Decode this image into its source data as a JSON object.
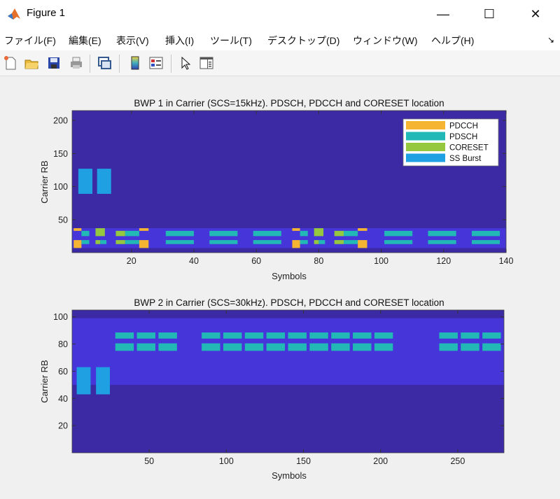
{
  "window": {
    "title": "Figure 1",
    "controls": [
      "minimize",
      "maximize",
      "close"
    ]
  },
  "menu": [
    "ファイル(F)",
    "編集(E)",
    "表示(V)",
    "挿入(I)",
    "ツール(T)",
    "デスクトップ(D)",
    "ウィンドウ(W)",
    "ヘルプ(H)"
  ],
  "toolbar": [
    "new-figure-icon",
    "open-file-icon",
    "save-icon",
    "print-icon",
    "link-plot-icon",
    "colorbar-icon",
    "legend-icon",
    "pointer-icon",
    "property-inspector-icon"
  ],
  "colors": {
    "background": "#3b2aa3",
    "bwp": "#4636d9",
    "PDCCH": "#f5b432",
    "PDSCH": "#22b8b6",
    "CORESET": "#95c83e",
    "SS Burst": "#1fa0e2"
  },
  "chart_data": [
    {
      "type": "heatmap",
      "title": "BWP 1 in Carrier (SCS=15kHz). PDSCH, PDCCH and CORESET location",
      "xlabel": "Symbols",
      "ylabel": "Carrier RB",
      "xlim": [
        1,
        140
      ],
      "ylim": [
        0,
        215
      ],
      "xticks": [
        20,
        40,
        60,
        80,
        100,
        120,
        140
      ],
      "yticks": [
        50,
        100,
        150,
        200
      ],
      "legend": {
        "placement": "top-right",
        "entries": [
          "PDCCH",
          "PDSCH",
          "CORESET",
          "SS Burst"
        ]
      },
      "regions": [
        {
          "type": "bwp",
          "x": [
            1,
            140
          ],
          "y": [
            7,
            37
          ]
        },
        {
          "type": "SS Burst",
          "x": [
            3,
            7.5
          ],
          "y": [
            89,
            127
          ]
        },
        {
          "type": "SS Burst",
          "x": [
            9,
            13.5
          ],
          "y": [
            89,
            127
          ]
        },
        {
          "type": "PDCCH",
          "x": [
            1.5,
            4
          ],
          "y": [
            7,
            19
          ]
        },
        {
          "type": "PDCCH",
          "x": [
            1.5,
            4
          ],
          "y": [
            33,
            37
          ]
        },
        {
          "type": "PDSCH",
          "x": [
            4,
            6.5
          ],
          "y": [
            13,
            19
          ]
        },
        {
          "type": "PDSCH",
          "x": [
            4,
            6.5
          ],
          "y": [
            25,
            33
          ]
        },
        {
          "type": "CORESET",
          "x": [
            8.5,
            11.5
          ],
          "y": [
            25,
            37
          ]
        },
        {
          "type": "CORESET",
          "x": [
            8.5,
            10
          ],
          "y": [
            13,
            19
          ]
        },
        {
          "type": "PDSCH",
          "x": [
            10,
            12
          ],
          "y": [
            13,
            19
          ]
        },
        {
          "type": "CORESET",
          "x": [
            15,
            18
          ],
          "y": [
            13,
            19
          ]
        },
        {
          "type": "CORESET",
          "x": [
            15,
            18
          ],
          "y": [
            25,
            33
          ]
        },
        {
          "type": "PDSCH",
          "x": [
            18,
            22.5
          ],
          "y": [
            13,
            19
          ]
        },
        {
          "type": "PDSCH",
          "x": [
            18,
            22.5
          ],
          "y": [
            25,
            33
          ]
        },
        {
          "type": "PDCCH",
          "x": [
            22.5,
            25.5
          ],
          "y": [
            7,
            19
          ]
        },
        {
          "type": "PDCCH",
          "x": [
            22.5,
            25.5
          ],
          "y": [
            33,
            37
          ]
        },
        {
          "type": "PDSCH",
          "x": [
            31,
            40
          ],
          "y": [
            25,
            33
          ]
        },
        {
          "type": "PDSCH",
          "x": [
            31,
            40
          ],
          "y": [
            13,
            19
          ]
        },
        {
          "type": "PDSCH",
          "x": [
            45,
            54
          ],
          "y": [
            25,
            33
          ]
        },
        {
          "type": "PDSCH",
          "x": [
            45,
            54
          ],
          "y": [
            13,
            19
          ]
        },
        {
          "type": "PDSCH",
          "x": [
            59,
            68
          ],
          "y": [
            25,
            33
          ]
        },
        {
          "type": "PDSCH",
          "x": [
            59,
            68
          ],
          "y": [
            13,
            19
          ]
        },
        {
          "type": "PDCCH",
          "x": [
            71.5,
            74
          ],
          "y": [
            7,
            19
          ]
        },
        {
          "type": "PDCCH",
          "x": [
            71.5,
            74
          ],
          "y": [
            33,
            37
          ]
        },
        {
          "type": "PDSCH",
          "x": [
            74,
            76.5
          ],
          "y": [
            13,
            19
          ]
        },
        {
          "type": "PDSCH",
          "x": [
            74,
            76.5
          ],
          "y": [
            25,
            33
          ]
        },
        {
          "type": "CORESET",
          "x": [
            78.5,
            81.5
          ],
          "y": [
            25,
            37
          ]
        },
        {
          "type": "CORESET",
          "x": [
            78.5,
            80
          ],
          "y": [
            13,
            19
          ]
        },
        {
          "type": "PDSCH",
          "x": [
            80,
            82
          ],
          "y": [
            13,
            19
          ]
        },
        {
          "type": "CORESET",
          "x": [
            85,
            88
          ],
          "y": [
            13,
            19
          ]
        },
        {
          "type": "CORESET",
          "x": [
            85,
            88
          ],
          "y": [
            25,
            33
          ]
        },
        {
          "type": "PDSCH",
          "x": [
            88,
            92.5
          ],
          "y": [
            13,
            19
          ]
        },
        {
          "type": "PDSCH",
          "x": [
            88,
            92.5
          ],
          "y": [
            25,
            33
          ]
        },
        {
          "type": "PDCCH",
          "x": [
            92.5,
            95.5
          ],
          "y": [
            7,
            19
          ]
        },
        {
          "type": "PDCCH",
          "x": [
            92.5,
            95.5
          ],
          "y": [
            33,
            37
          ]
        },
        {
          "type": "PDSCH",
          "x": [
            101,
            110
          ],
          "y": [
            25,
            33
          ]
        },
        {
          "type": "PDSCH",
          "x": [
            101,
            110
          ],
          "y": [
            13,
            19
          ]
        },
        {
          "type": "PDSCH",
          "x": [
            115,
            124
          ],
          "y": [
            25,
            33
          ]
        },
        {
          "type": "PDSCH",
          "x": [
            115,
            124
          ],
          "y": [
            13,
            19
          ]
        },
        {
          "type": "PDSCH",
          "x": [
            129,
            138
          ],
          "y": [
            25,
            33
          ]
        },
        {
          "type": "PDSCH",
          "x": [
            129,
            138
          ],
          "y": [
            13,
            19
          ]
        }
      ]
    },
    {
      "type": "heatmap",
      "title": "BWP 2 in Carrier (SCS=30kHz). PDSCH, PDCCH and CORESET location",
      "xlabel": "Symbols",
      "ylabel": "Carrier RB",
      "xlim": [
        0,
        280
      ],
      "ylim": [
        0,
        105
      ],
      "xticks": [
        50,
        100,
        150,
        200,
        250
      ],
      "yticks": [
        20,
        40,
        60,
        80,
        100
      ],
      "regions": [
        {
          "type": "bwp",
          "x": [
            0,
            280
          ],
          "y": [
            50,
            99
          ]
        },
        {
          "type": "SS Burst",
          "x": [
            3,
            12
          ],
          "y": [
            43,
            63
          ]
        },
        {
          "type": "SS Burst",
          "x": [
            15.5,
            24.5
          ],
          "y": [
            43,
            63
          ]
        },
        {
          "type": "PDSCH",
          "x": [
            28,
            40
          ],
          "y": [
            84,
            88.5
          ]
        },
        {
          "type": "PDSCH",
          "x": [
            28,
            40
          ],
          "y": [
            75,
            80.5
          ]
        },
        {
          "type": "PDSCH",
          "x": [
            42,
            54
          ],
          "y": [
            84,
            88.5
          ]
        },
        {
          "type": "PDSCH",
          "x": [
            42,
            54
          ],
          "y": [
            75,
            80.5
          ]
        },
        {
          "type": "PDSCH",
          "x": [
            56,
            68
          ],
          "y": [
            84,
            88.5
          ]
        },
        {
          "type": "PDSCH",
          "x": [
            56,
            68
          ],
          "y": [
            75,
            80.5
          ]
        },
        {
          "type": "PDSCH",
          "x": [
            84,
            96
          ],
          "y": [
            84,
            88.5
          ]
        },
        {
          "type": "PDSCH",
          "x": [
            84,
            96
          ],
          "y": [
            75,
            80.5
          ]
        },
        {
          "type": "PDSCH",
          "x": [
            98,
            110
          ],
          "y": [
            84,
            88.5
          ]
        },
        {
          "type": "PDSCH",
          "x": [
            98,
            110
          ],
          "y": [
            75,
            80.5
          ]
        },
        {
          "type": "PDSCH",
          "x": [
            112,
            124
          ],
          "y": [
            84,
            88.5
          ]
        },
        {
          "type": "PDSCH",
          "x": [
            112,
            124
          ],
          "y": [
            75,
            80.5
          ]
        },
        {
          "type": "PDSCH",
          "x": [
            126,
            138
          ],
          "y": [
            84,
            88.5
          ]
        },
        {
          "type": "PDSCH",
          "x": [
            126,
            138
          ],
          "y": [
            75,
            80.5
          ]
        },
        {
          "type": "PDSCH",
          "x": [
            140,
            152
          ],
          "y": [
            84,
            88.5
          ]
        },
        {
          "type": "PDSCH",
          "x": [
            140,
            152
          ],
          "y": [
            75,
            80.5
          ]
        },
        {
          "type": "PDSCH",
          "x": [
            154,
            166
          ],
          "y": [
            84,
            88.5
          ]
        },
        {
          "type": "PDSCH",
          "x": [
            154,
            166
          ],
          "y": [
            75,
            80.5
          ]
        },
        {
          "type": "PDSCH",
          "x": [
            168,
            180
          ],
          "y": [
            84,
            88.5
          ]
        },
        {
          "type": "PDSCH",
          "x": [
            168,
            180
          ],
          "y": [
            75,
            80.5
          ]
        },
        {
          "type": "PDSCH",
          "x": [
            182,
            194
          ],
          "y": [
            84,
            88.5
          ]
        },
        {
          "type": "PDSCH",
          "x": [
            182,
            194
          ],
          "y": [
            75,
            80.5
          ]
        },
        {
          "type": "PDSCH",
          "x": [
            196,
            208
          ],
          "y": [
            84,
            88.5
          ]
        },
        {
          "type": "PDSCH",
          "x": [
            196,
            208
          ],
          "y": [
            75,
            80.5
          ]
        },
        {
          "type": "PDSCH",
          "x": [
            238,
            250
          ],
          "y": [
            84,
            88.5
          ]
        },
        {
          "type": "PDSCH",
          "x": [
            238,
            250
          ],
          "y": [
            75,
            80.5
          ]
        },
        {
          "type": "PDSCH",
          "x": [
            252,
            264
          ],
          "y": [
            84,
            88.5
          ]
        },
        {
          "type": "PDSCH",
          "x": [
            252,
            264
          ],
          "y": [
            75,
            80.5
          ]
        },
        {
          "type": "PDSCH",
          "x": [
            266,
            278
          ],
          "y": [
            84,
            88.5
          ]
        },
        {
          "type": "PDSCH",
          "x": [
            266,
            278
          ],
          "y": [
            75,
            80.5
          ]
        }
      ]
    }
  ]
}
